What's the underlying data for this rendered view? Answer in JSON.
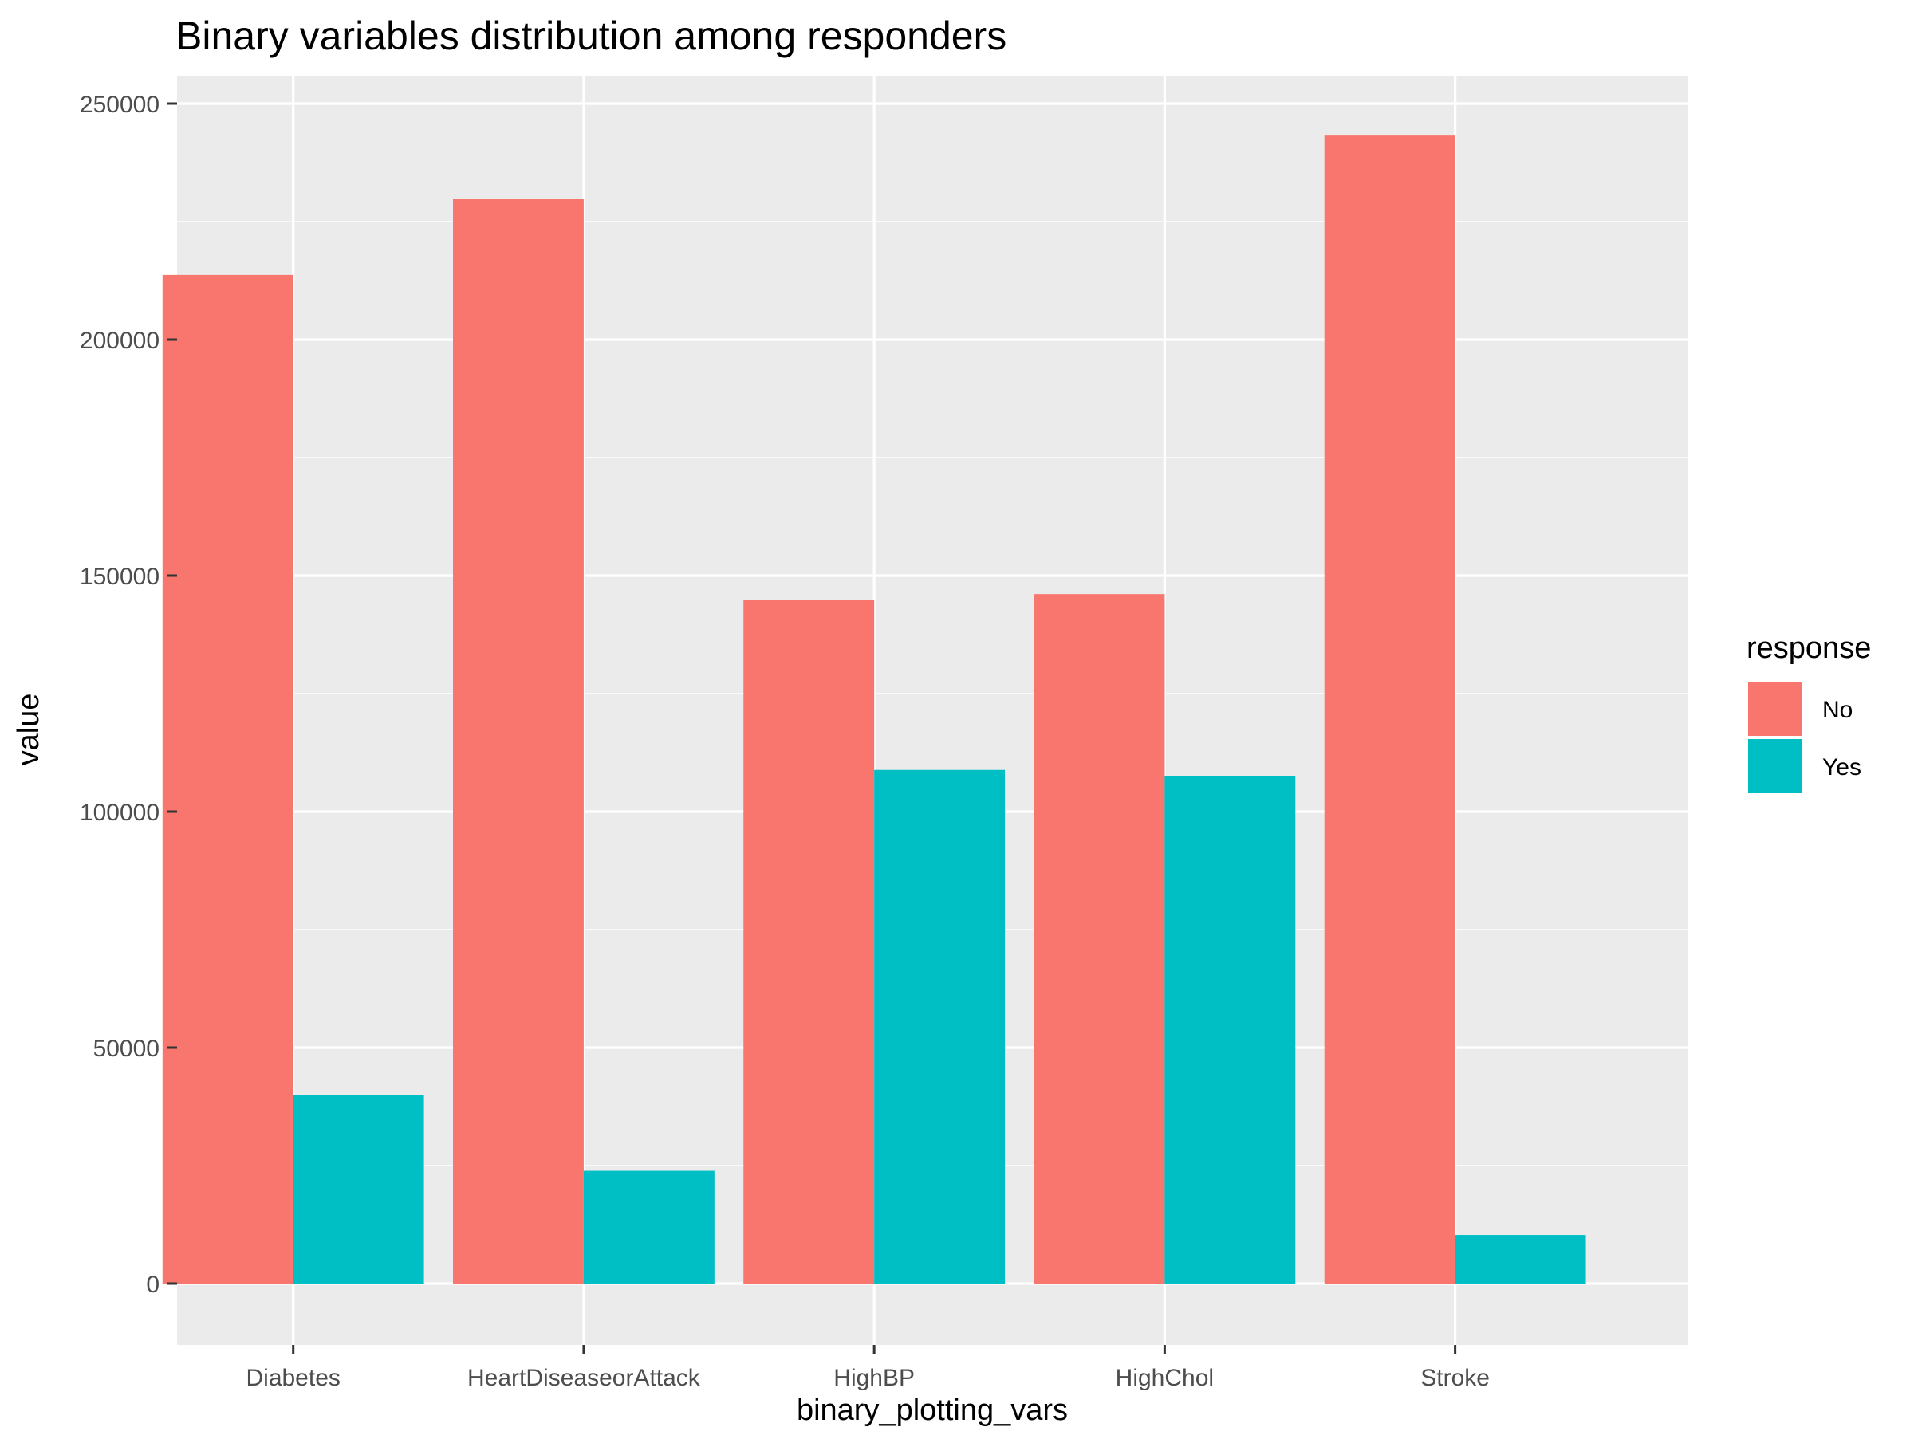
{
  "chart_data": {
    "type": "bar",
    "title": "Binary variables distribution among responders",
    "xlabel": "binary_plotting_vars",
    "ylabel": "value",
    "categories": [
      "Diabetes",
      "HeartDiseaseorAttack",
      "HighBP",
      "HighChol",
      "Stroke"
    ],
    "series": [
      {
        "name": "No",
        "color": "#F8766D",
        "values": [
          213703,
          229787,
          144851,
          146089,
          243388
        ]
      },
      {
        "name": "Yes",
        "color": "#00BFC4",
        "values": [
          39977,
          23893,
          108829,
          107591,
          10292
        ]
      }
    ],
    "ylim": [
      0,
      250000
    ],
    "yticks": [
      0,
      50000,
      100000,
      150000,
      200000,
      250000
    ],
    "yticks_minor": [
      25000,
      75000,
      125000,
      175000,
      225000
    ],
    "ytick_labels": [
      "0",
      "50000",
      "100000",
      "150000",
      "200000",
      "250000"
    ],
    "grid": true,
    "legend": {
      "title": "response",
      "position": "right"
    },
    "panel_background": "#EBEBEB",
    "grid_color": "#FFFFFF"
  }
}
